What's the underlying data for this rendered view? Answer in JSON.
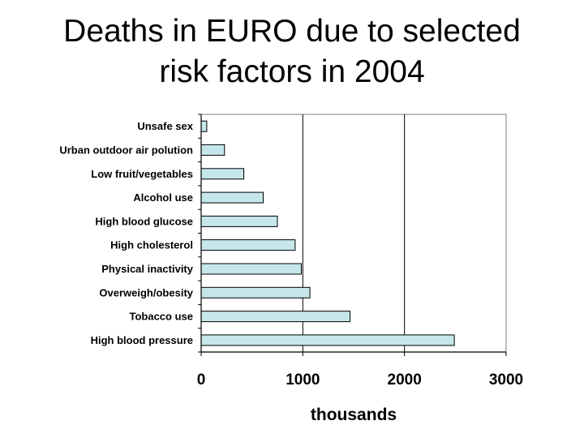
{
  "title": {
    "line1": "Deaths in EURO due to selected",
    "line2": "risk factors in 2004"
  },
  "chart_data": {
    "type": "bar",
    "orientation": "horizontal",
    "categories": [
      "Unsafe sex",
      "Urban outdoor air polution",
      "Low fruit/vegetables",
      "Alcohol use",
      "High blood glucose",
      "High cholesterol",
      "Physical inactivity",
      "Overweigh/obesity",
      "Tobacco use",
      "High blood pressure"
    ],
    "values": [
      55,
      230,
      420,
      610,
      750,
      925,
      985,
      1070,
      1465,
      2490
    ],
    "xlabel": "thousands",
    "ylabel": "",
    "xlim": [
      0,
      3000
    ],
    "xticks": [
      "0",
      "1000",
      "2000",
      "3000"
    ],
    "grid": "vertical",
    "bar_color": "#c5e6ea",
    "bar_stroke": "#000000"
  }
}
